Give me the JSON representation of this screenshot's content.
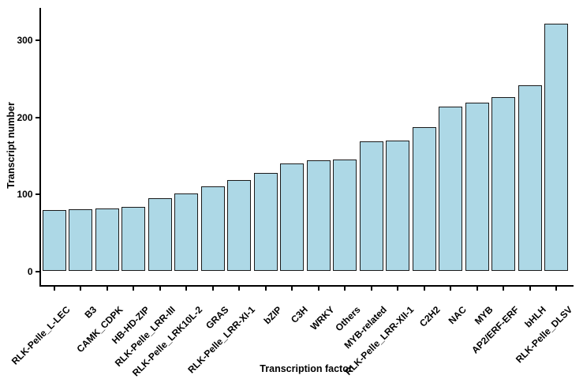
{
  "chart_data": {
    "type": "bar",
    "title": "",
    "xlabel": "Transcription factor",
    "ylabel": "Transcript number",
    "categories": [
      "RLK-Pelle_L-LEC",
      "B3",
      "CAMK_CDPK",
      "HB-HD-ZIP",
      "RLK-Pelle_LRR-III",
      "RLK-Pelle_LRK10L-2",
      "GRAS",
      "RLK-Pelle_LRR-XI-1",
      "bZIP",
      "C3H",
      "WRKY",
      "Others",
      "MYB-related",
      "RLK-Pelle_LRR-XII-1",
      "C2H2",
      "NAC",
      "MYB",
      "AP2/ERF-ERF",
      "bHLH",
      "RLK-Pelle_DLSV"
    ],
    "values": [
      80,
      81,
      82,
      84,
      95,
      101,
      110,
      119,
      128,
      140,
      144,
      145,
      169,
      170,
      187,
      214,
      219,
      227,
      242,
      322
    ],
    "yticks": [
      0,
      100,
      200,
      300
    ],
    "ylim": [
      0,
      340
    ],
    "grid": "off",
    "legend": "none",
    "bar_fill_color": "#add8e6",
    "bar_border_color": "#1a1a1a",
    "axis_color": "#000000",
    "text_color": "#000000",
    "background_color": "#ffffff"
  }
}
